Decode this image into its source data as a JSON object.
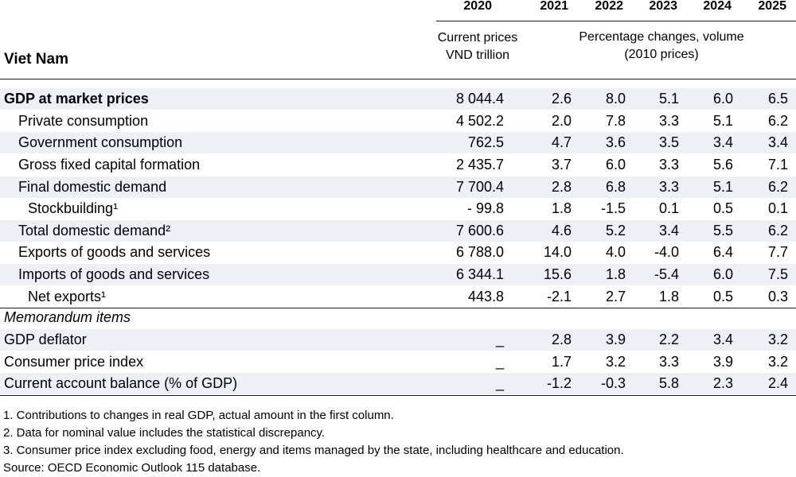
{
  "header": {
    "country": "Viet Nam",
    "years": [
      "2020",
      "2021",
      "2022",
      "2023",
      "2024",
      "2025"
    ],
    "col1_sub": [
      "Current prices",
      "VND trillion"
    ],
    "col2_sub": [
      "Percentage changes, volume",
      "(2010 prices)"
    ]
  },
  "rows": [
    {
      "label": "GDP at market prices",
      "values": [
        "8 044.4",
        "2.6",
        "8.0",
        "5.1",
        "6.0",
        "6.5"
      ]
    },
    {
      "label": "Private consumption",
      "values": [
        "4 502.2",
        "2.0",
        "7.8",
        "3.3",
        "5.1",
        "6.2"
      ]
    },
    {
      "label": "Government consumption",
      "values": [
        "762.5",
        "4.7",
        "3.6",
        "3.5",
        "3.4",
        "3.4"
      ]
    },
    {
      "label": "Gross fixed capital formation",
      "values": [
        "2 435.7",
        "3.7",
        "6.0",
        "3.3",
        "5.6",
        "7.1"
      ]
    },
    {
      "label": "Final domestic demand",
      "values": [
        "7 700.4",
        "2.8",
        "6.8",
        "3.3",
        "5.1",
        "6.2"
      ]
    },
    {
      "label": "Stockbuilding¹",
      "values": [
        "- 99.8",
        "1.8",
        "-1.5",
        "0.1",
        "0.5",
        "0.1"
      ]
    },
    {
      "label": "Total domestic demand²",
      "values": [
        "7 600.6",
        "4.6",
        "5.2",
        "3.4",
        "5.5",
        "6.2"
      ]
    },
    {
      "label": "Exports of goods and services",
      "values": [
        "6 788.0",
        "14.0",
        "4.0",
        "-4.0",
        "6.4",
        "7.7"
      ]
    },
    {
      "label": "Imports of goods and services",
      "values": [
        "6 344.1",
        "15.6",
        "1.8",
        "-5.4",
        "6.0",
        "7.5"
      ]
    },
    {
      "label": "Net exports¹",
      "values": [
        "443.8",
        "-2.1",
        "2.7",
        "1.8",
        "0.5",
        "0.3"
      ]
    }
  ],
  "memo": {
    "title": "Memorandum items",
    "rows": [
      {
        "label": "GDP deflator",
        "values": [
          "_",
          "2.8",
          "3.9",
          "2.2",
          "3.4",
          "3.2"
        ]
      },
      {
        "label": "Consumer price index",
        "values": [
          "_",
          "1.7",
          "3.2",
          "3.3",
          "3.9",
          "3.2"
        ]
      },
      {
        "label": "Current account balance (% of GDP)",
        "values": [
          "_",
          "-1.2",
          "-0.3",
          "5.8",
          "2.3",
          "2.4"
        ]
      }
    ]
  },
  "notes": [
    "1. Contributions to changes in real GDP, actual amount in the first column.",
    "2. Data for nominal value includes the statistical discrepancy.",
    "3. Consumer price index excluding food, energy and items managed by the state, including healthcare and education.",
    "Source: OECD Economic Outlook 115 database."
  ]
}
